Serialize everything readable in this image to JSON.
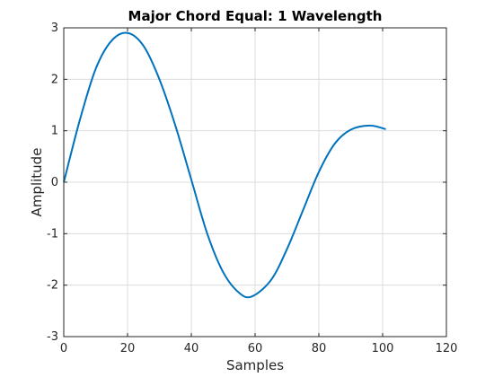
{
  "chart_data": {
    "type": "line",
    "title": "Major Chord Equal: 1 Wavelength",
    "xlabel": "Samples",
    "ylabel": "Amplitude",
    "xlim": [
      0,
      120
    ],
    "ylim": [
      -3,
      3
    ],
    "xticks": [
      0,
      20,
      40,
      60,
      80,
      100,
      120
    ],
    "yticks": [
      -3,
      -2,
      -1,
      0,
      1,
      2,
      3
    ],
    "grid": true,
    "series_color": "#0072BD",
    "series": [
      {
        "x": [
          0,
          5,
          10,
          15,
          20,
          25,
          30,
          35,
          40,
          45,
          50,
          55,
          59,
          65,
          70,
          75,
          80,
          85,
          90,
          96,
          101
        ],
        "y": [
          0.0,
          1.2,
          2.2,
          2.75,
          2.9,
          2.65,
          2.0,
          1.1,
          0.05,
          -1.0,
          -1.75,
          -2.15,
          -2.22,
          -1.9,
          -1.3,
          -0.55,
          0.2,
          0.75,
          1.02,
          1.1,
          1.03
        ]
      }
    ]
  }
}
